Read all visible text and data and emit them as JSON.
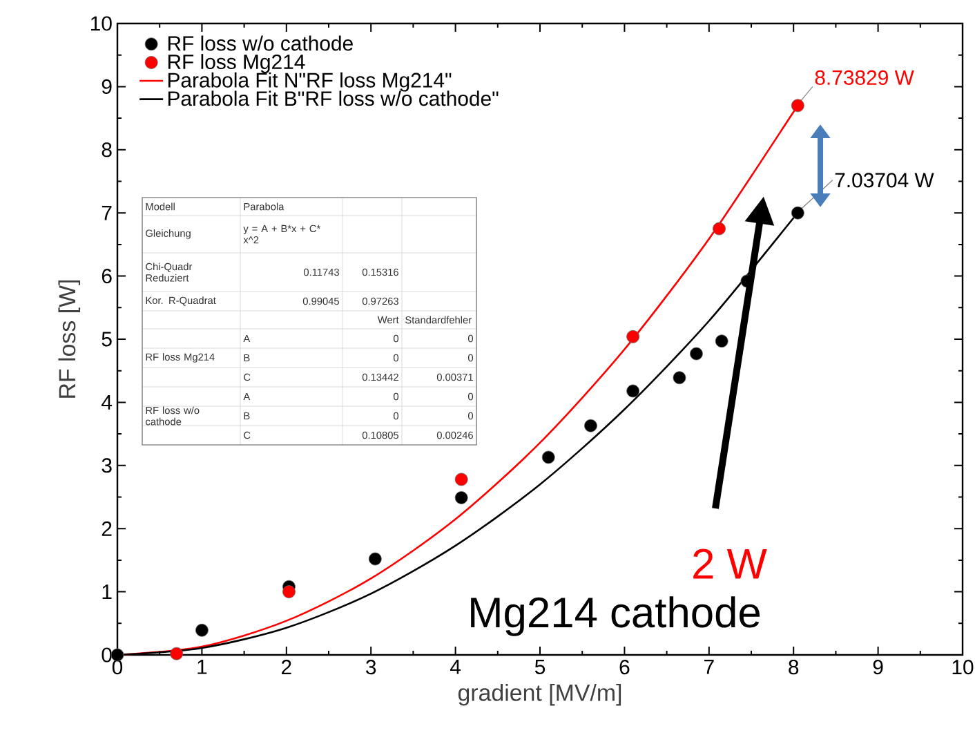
{
  "chart_data": {
    "type": "scatter",
    "xlabel": "gradient [MV/m]",
    "ylabel": "RF loss [W]",
    "xlim": [
      0,
      10
    ],
    "ylim": [
      0,
      10
    ],
    "xticks": [
      0,
      1,
      2,
      3,
      4,
      5,
      6,
      7,
      8,
      9,
      10
    ],
    "yticks": [
      0,
      1,
      2,
      3,
      4,
      5,
      6,
      7,
      8,
      9,
      10
    ],
    "legend": "top left",
    "series": [
      {
        "name": "RF loss w/o cathode",
        "color": "#000000",
        "x": [
          0,
          1.0,
          2.03,
          3.05,
          4.07,
          5.1,
          5.6,
          6.1,
          6.65,
          6.85,
          7.15,
          7.45,
          8.05
        ],
        "values": [
          0,
          0.39,
          1.08,
          1.52,
          2.49,
          3.13,
          3.63,
          4.18,
          4.39,
          4.77,
          4.97,
          5.92,
          7.0
        ]
      },
      {
        "name": "RF loss Mg214",
        "color": "#ff0000",
        "x": [
          0.7,
          2.03,
          4.07,
          6.1,
          7.12,
          8.05
        ],
        "values": [
          0.02,
          1.0,
          2.78,
          5.04,
          6.75,
          8.7
        ]
      },
      {
        "name": "Parabola Fit N\"RF loss Mg214\"",
        "type": "line",
        "color": "#ff0000",
        "x": [
          0,
          1,
          2,
          3,
          4,
          5,
          6,
          7,
          8,
          8.063
        ],
        "values": [
          0,
          0.13,
          0.54,
          1.21,
          2.15,
          3.36,
          4.84,
          6.59,
          8.6,
          8.74
        ]
      },
      {
        "name": "Parabola Fit B\"RF loss w/o cathode\"",
        "type": "line",
        "color": "#000000",
        "x": [
          0,
          1,
          2,
          3,
          4,
          5,
          6,
          7,
          8,
          8.07
        ],
        "values": [
          0,
          0.11,
          0.43,
          0.97,
          1.73,
          2.7,
          3.89,
          5.29,
          6.92,
          7.04
        ]
      }
    ],
    "annotations": [
      "2 W",
      "Mg214 cathode",
      {
        "text": "8.73829 W",
        "x": 8.063,
        "y": 8.738
      },
      {
        "text": "7.03704 W",
        "x": 8.07,
        "y": 7.037
      },
      "Modell",
      "Parabola",
      "Gleichung",
      "y = A + B*x + C* x^2",
      "Chi-Quadr Reduziert",
      "0.11743",
      "0.15316",
      "Kor. R-Quadrat",
      "0.99045",
      "0.97263",
      "Wert",
      "Standardfehler",
      "RF loss Mg214",
      "A",
      "0",
      "0",
      "B",
      "0",
      "0",
      "C",
      "0.13442",
      "0.00371",
      "RF loss w/o cathode",
      "A",
      "0",
      "0",
      "B",
      "0",
      "0",
      "C",
      "0.10805",
      "0.00246"
    ]
  }
}
